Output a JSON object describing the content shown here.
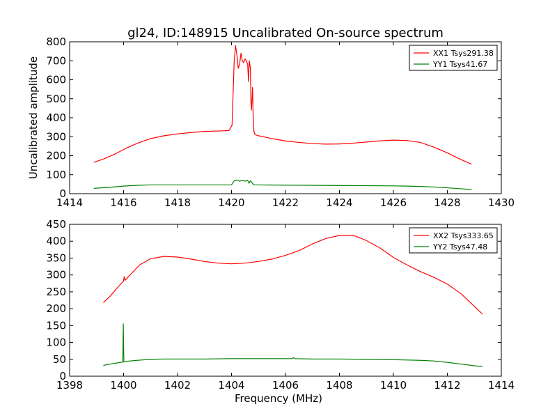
{
  "figure": {
    "title": "gl24, ID:148915 Uncalibrated On-source spectrum"
  },
  "colors": {
    "xx": "#ff0000",
    "yy": "#008000"
  },
  "chart_data": [
    {
      "type": "line",
      "title": "gl24, ID:148915 Uncalibrated On-source spectrum",
      "xlabel": "",
      "ylabel": "Uncalibrated amplitude",
      "xlim": [
        1414,
        1430
      ],
      "ylim": [
        0,
        800
      ],
      "xticks": [
        1414,
        1416,
        1418,
        1420,
        1422,
        1424,
        1426,
        1428,
        1430
      ],
      "yticks": [
        0,
        100,
        200,
        300,
        400,
        500,
        600,
        700,
        800
      ],
      "legend_position": "top-right",
      "grid": false,
      "series": [
        {
          "name": "XX1 Tsys291.38",
          "color": "#ff0000",
          "x": [
            1414.9,
            1415.3,
            1415.7,
            1416.1,
            1416.5,
            1417.0,
            1417.5,
            1418.0,
            1418.5,
            1419.0,
            1419.5,
            1419.9,
            1420.02,
            1420.1,
            1420.15,
            1420.2,
            1420.25,
            1420.3,
            1420.35,
            1420.4,
            1420.45,
            1420.5,
            1420.55,
            1420.6,
            1420.63,
            1420.66,
            1420.7,
            1420.72,
            1420.74,
            1420.78,
            1420.8,
            1420.83,
            1420.86,
            1420.9,
            1421.0,
            1421.5,
            1422.0,
            1422.5,
            1423.0,
            1423.5,
            1424.0,
            1424.5,
            1425.0,
            1425.5,
            1426.0,
            1426.5,
            1427.0,
            1427.5,
            1428.0,
            1428.5,
            1428.9
          ],
          "values": [
            165,
            185,
            210,
            240,
            265,
            290,
            305,
            315,
            322,
            328,
            330,
            332,
            360,
            700,
            780,
            730,
            660,
            680,
            740,
            700,
            690,
            710,
            700,
            680,
            590,
            700,
            660,
            480,
            440,
            560,
            420,
            330,
            315,
            310,
            305,
            290,
            278,
            270,
            264,
            261,
            262,
            266,
            272,
            278,
            282,
            280,
            270,
            245,
            215,
            180,
            155
          ]
        },
        {
          "name": "YY1 Tsys41.67",
          "color": "#008000",
          "x": [
            1414.9,
            1415.5,
            1416.0,
            1416.5,
            1417.0,
            1418.0,
            1419.0,
            1420.0,
            1420.1,
            1420.2,
            1420.3,
            1420.4,
            1420.5,
            1420.6,
            1420.65,
            1420.7,
            1420.75,
            1420.8,
            1420.85,
            1421.0,
            1422.0,
            1423.0,
            1424.0,
            1425.0,
            1426.0,
            1426.5,
            1427.0,
            1427.5,
            1428.0,
            1428.5,
            1428.9
          ],
          "values": [
            28,
            34,
            40,
            44,
            46,
            46,
            46,
            46,
            68,
            72,
            66,
            70,
            66,
            70,
            55,
            68,
            60,
            50,
            46,
            46,
            45,
            44,
            43,
            42,
            41,
            40,
            38,
            35,
            31,
            26,
            22
          ]
        }
      ]
    },
    {
      "type": "line",
      "title": "",
      "xlabel": "Frequency (MHz)",
      "ylabel": "",
      "xlim": [
        1398,
        1414
      ],
      "ylim": [
        0,
        450
      ],
      "xticks": [
        1398,
        1400,
        1402,
        1404,
        1406,
        1408,
        1410,
        1412,
        1414
      ],
      "yticks": [
        0,
        50,
        100,
        150,
        200,
        250,
        300,
        350,
        400,
        450
      ],
      "legend_position": "top-right",
      "grid": false,
      "series": [
        {
          "name": "XX2 Tsys333.65",
          "color": "#ff0000",
          "x": [
            1399.25,
            1399.5,
            1399.8,
            1400.0,
            1400.02,
            1400.05,
            1400.3,
            1400.6,
            1401.0,
            1401.5,
            1402.0,
            1402.5,
            1403.0,
            1403.5,
            1404.0,
            1404.5,
            1405.0,
            1405.5,
            1406.0,
            1406.5,
            1407.0,
            1407.5,
            1408.0,
            1408.3,
            1408.6,
            1409.0,
            1409.5,
            1410.0,
            1410.5,
            1411.0,
            1411.5,
            1412.0,
            1412.5,
            1413.0,
            1413.3
          ],
          "values": [
            218,
            237,
            265,
            282,
            295,
            284,
            305,
            330,
            348,
            355,
            353,
            347,
            340,
            335,
            333,
            335,
            340,
            347,
            358,
            372,
            392,
            408,
            417,
            418,
            415,
            402,
            380,
            352,
            330,
            310,
            293,
            273,
            245,
            207,
            184
          ]
        },
        {
          "name": "YY2 Tsys47.48",
          "color": "#008000",
          "x": [
            1399.25,
            1399.5,
            1399.9,
            1399.97,
            1399.99,
            1400.01,
            1400.03,
            1400.1,
            1400.5,
            1401.0,
            1401.5,
            1402.0,
            1403.0,
            1404.0,
            1405.0,
            1406.0,
            1406.25,
            1406.3,
            1406.35,
            1407.0,
            1408.0,
            1409.0,
            1410.0,
            1411.0,
            1411.5,
            1412.0,
            1412.5,
            1413.0,
            1413.3
          ],
          "values": [
            32,
            36,
            41,
            42,
            155,
            42,
            43,
            44,
            47,
            50,
            51,
            51,
            51,
            52,
            52,
            52,
            52,
            55,
            52,
            51,
            51,
            50,
            49,
            47,
            45,
            41,
            36,
            31,
            28
          ]
        }
      ]
    }
  ]
}
